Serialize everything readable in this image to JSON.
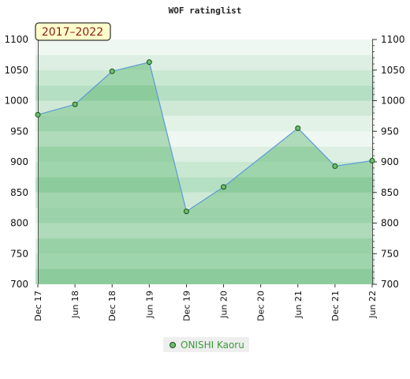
{
  "chart_data": {
    "type": "line",
    "title": "WOF ratinglist",
    "period_badge": "2017–2022",
    "x": [
      "Dec 17",
      "Jun 18",
      "Dec 18",
      "Jun 19",
      "Dec 19",
      "Jun 20",
      "Dec 20",
      "Jun 21",
      "Dec 21",
      "Jun 22"
    ],
    "series": [
      {
        "name": "ONISHI Kaoru",
        "points": [
          {
            "x": "Dec 17",
            "y": 977
          },
          {
            "x": "Jun 18",
            "y": 994
          },
          {
            "x": "Dec 18",
            "y": 1048
          },
          {
            "x": "Jun 19",
            "y": 1063
          },
          {
            "x": "Dec 19",
            "y": 819
          },
          {
            "x": "Jun 20",
            "y": 859
          },
          {
            "x": "Jun 21",
            "y": 955
          },
          {
            "x": "Dec 21",
            "y": 893
          },
          {
            "x": "Jun 22",
            "y": 902
          }
        ]
      }
    ],
    "ylim": [
      700,
      1100
    ],
    "yticks": [
      700,
      750,
      800,
      850,
      900,
      950,
      1000,
      1050,
      1100
    ],
    "y_axis_sides": "left and right",
    "xlabel": "",
    "ylabel": "",
    "legend_position": "bottom-center",
    "colors": {
      "line": "#5b9bd5",
      "marker_fill": "#6abf6a",
      "marker_stroke": "#1b4d1b",
      "area_fill": "#7cc48c",
      "band_dark": "#b5dfc2",
      "band_light": "#eef7f1",
      "legend_text": "#3a9a3a"
    }
  }
}
